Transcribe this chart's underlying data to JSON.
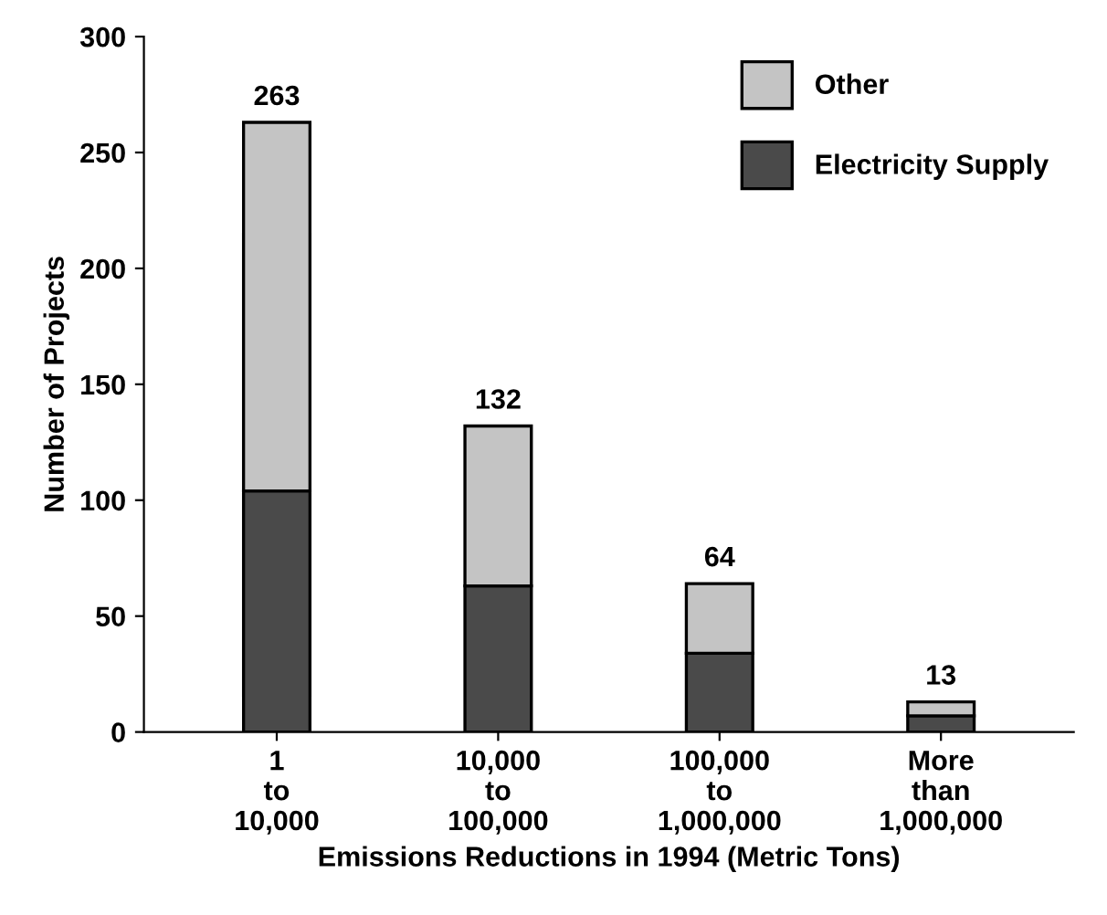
{
  "chart_data": {
    "type": "bar",
    "stacked": true,
    "xlabel": "Emissions Reductions in 1994 (Metric Tons)",
    "ylabel": "Number of Projects",
    "categories": [
      "1\nto\n10,000",
      "10,000\nto\n100,000",
      "100,000\nto\n1,000,000",
      "More\nthan\n1,000,000"
    ],
    "series": [
      {
        "name": "Electricity Supply",
        "color": "#4a4a4a",
        "values": [
          104,
          63,
          34,
          7
        ]
      },
      {
        "name": "Other",
        "color": "#c4c4c4",
        "values": [
          159,
          69,
          30,
          6
        ]
      }
    ],
    "totals": [
      "263",
      "132",
      "64",
      "13"
    ],
    "ylim": [
      0,
      300
    ],
    "yticks": [
      0,
      50,
      100,
      150,
      200,
      250,
      300
    ],
    "grid": false,
    "legend": "top right"
  }
}
